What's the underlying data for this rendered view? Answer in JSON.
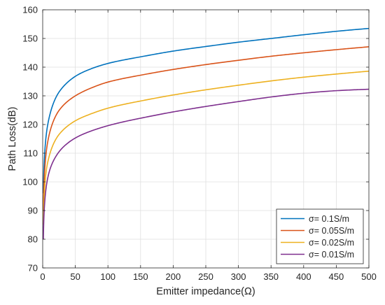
{
  "chart_data": {
    "type": "line",
    "title": "",
    "xlabel": "Emitter impedance(Ω)",
    "ylabel": "Path Loss(dB)",
    "xlim": [
      0,
      500
    ],
    "ylim": [
      70,
      160
    ],
    "xticks": [
      0,
      50,
      100,
      150,
      200,
      250,
      300,
      350,
      400,
      450,
      500
    ],
    "yticks": [
      70,
      80,
      90,
      100,
      110,
      120,
      130,
      140,
      150,
      160
    ],
    "grid": true,
    "legend_position": "bottom-right",
    "series": [
      {
        "name": "σ= 0.1S/m",
        "color": "#0072BD",
        "x": [
          1,
          2,
          5,
          10,
          20,
          30,
          50,
          75,
          100,
          150,
          200,
          250,
          300,
          350,
          400,
          450,
          500
        ],
        "y": [
          96,
          105,
          115.5,
          122.5,
          129.3,
          132.8,
          136.8,
          139.5,
          141.3,
          143.6,
          145.6,
          147.2,
          148.7,
          150,
          151.3,
          152.5,
          153.5
        ]
      },
      {
        "name": "σ= 0.05S/m",
        "color": "#D95319",
        "x": [
          1,
          2,
          5,
          10,
          20,
          30,
          50,
          75,
          100,
          150,
          200,
          250,
          300,
          350,
          400,
          450,
          500
        ],
        "y": [
          90,
          99,
          109.5,
          116.5,
          123,
          126.3,
          130,
          132.8,
          134.8,
          137.2,
          139.2,
          140.9,
          142.4,
          143.8,
          145,
          146.1,
          147.1
        ]
      },
      {
        "name": "σ= 0.02S/m",
        "color": "#EDB120",
        "x": [
          1,
          2,
          5,
          10,
          20,
          30,
          50,
          75,
          100,
          150,
          200,
          250,
          300,
          350,
          400,
          450,
          500
        ],
        "y": [
          85,
          93.5,
          103,
          109,
          114.8,
          117.8,
          121.3,
          123.8,
          125.7,
          128.2,
          130.3,
          132.1,
          133.7,
          135.2,
          136.5,
          137.6,
          138.6
        ]
      },
      {
        "name": "σ= 0.01S/m",
        "color": "#7E2F8E",
        "x": [
          1,
          2,
          5,
          10,
          20,
          30,
          50,
          75,
          100,
          150,
          200,
          250,
          300,
          350,
          400,
          450,
          500
        ],
        "y": [
          80,
          88.5,
          97.5,
          103.5,
          108.8,
          111.8,
          115.3,
          117.8,
          119.6,
          122.2,
          124.4,
          126.3,
          128,
          129.6,
          130.9,
          131.8,
          132.3
        ]
      }
    ]
  }
}
